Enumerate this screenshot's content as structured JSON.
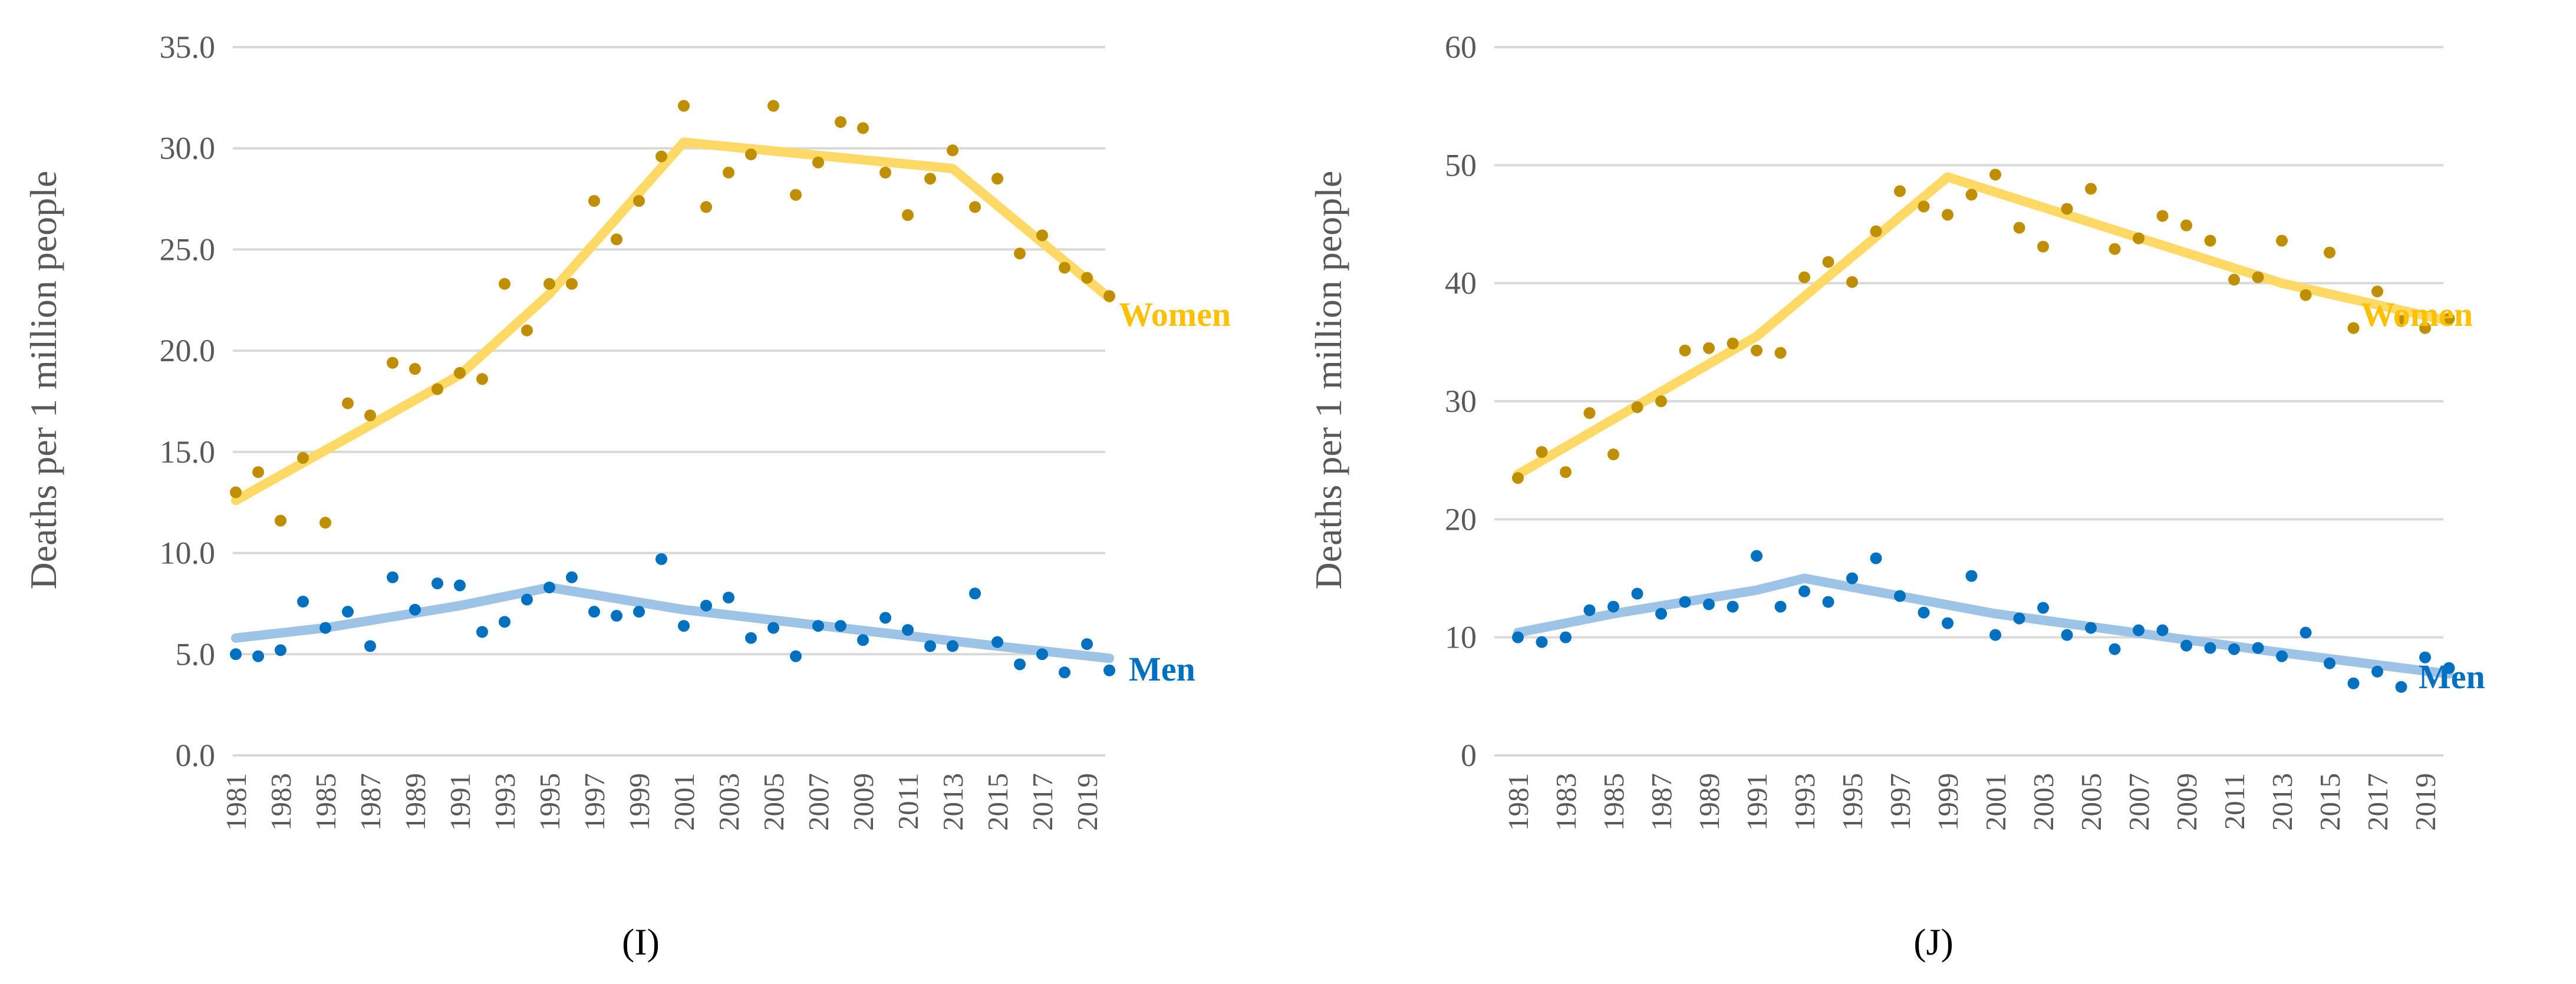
{
  "chart_data": [
    {
      "type": "scatter",
      "panel_label": "(I)",
      "ylabel": "Deaths per 1 million people",
      "ylim": [
        0,
        35
      ],
      "yticks": [
        "0.0",
        "5.0",
        "10.0",
        "15.0",
        "20.0",
        "25.0",
        "30.0",
        "35.0"
      ],
      "ytick_values": [
        0,
        5,
        10,
        15,
        20,
        25,
        30,
        35
      ],
      "x": [
        1981,
        1982,
        1983,
        1984,
        1985,
        1986,
        1987,
        1988,
        1989,
        1990,
        1991,
        1992,
        1993,
        1994,
        1995,
        1996,
        1997,
        1998,
        1999,
        2000,
        2001,
        2002,
        2003,
        2004,
        2005,
        2006,
        2007,
        2008,
        2009,
        2010,
        2011,
        2012,
        2013,
        2014,
        2015,
        2016,
        2017,
        2018,
        2019,
        2020
      ],
      "xticks": [
        "1981",
        "1983",
        "1985",
        "1987",
        "1989",
        "1991",
        "1993",
        "1995",
        "1997",
        "1999",
        "2001",
        "2003",
        "2005",
        "2007",
        "2009",
        "2011",
        "2013",
        "2015",
        "2017",
        "2019"
      ],
      "grid": true,
      "series": [
        {
          "name": "Women",
          "color": "#bf8f00",
          "trend_color": "#ffd966",
          "values": [
            13.0,
            14.0,
            11.6,
            14.7,
            11.5,
            17.4,
            16.8,
            19.4,
            19.1,
            18.1,
            18.9,
            18.6,
            23.3,
            21.0,
            23.3,
            23.3,
            27.4,
            25.5,
            27.4,
            29.6,
            32.1,
            27.1,
            28.8,
            29.7,
            32.1,
            27.7,
            29.3,
            31.3,
            31.0,
            28.8,
            26.7,
            28.5,
            29.9,
            27.1,
            28.5,
            24.8,
            25.7,
            24.1,
            23.6,
            22.7
          ],
          "trend_x": [
            1981,
            1991,
            1995,
            2001,
            2013,
            2020
          ],
          "trend_y": [
            12.6,
            18.8,
            22.8,
            30.3,
            29.0,
            22.6
          ]
        },
        {
          "name": "Men",
          "color": "#0070c0",
          "trend_color": "#9dc3e6",
          "values": [
            5.0,
            4.9,
            5.2,
            7.6,
            6.3,
            7.1,
            5.4,
            8.8,
            7.2,
            8.5,
            8.4,
            6.1,
            6.6,
            7.7,
            8.3,
            8.8,
            7.1,
            6.9,
            7.1,
            9.7,
            6.4,
            7.4,
            7.8,
            5.8,
            6.3,
            4.9,
            6.4,
            6.4,
            5.7,
            6.8,
            6.2,
            5.4,
            5.4,
            8.0,
            5.6,
            4.5,
            5.0,
            4.1,
            5.5,
            4.2
          ],
          "trend_x": [
            1981,
            1985,
            1991,
            1995,
            2001,
            2015,
            2020
          ],
          "trend_y": [
            5.8,
            6.3,
            7.4,
            8.3,
            7.2,
            5.4,
            4.8
          ]
        }
      ]
    },
    {
      "type": "scatter",
      "panel_label": "(J)",
      "ylabel": "Deaths per 1 million people",
      "ylim": [
        0,
        60
      ],
      "yticks": [
        "0",
        "10",
        "20",
        "30",
        "40",
        "50",
        "60"
      ],
      "ytick_values": [
        0,
        10,
        20,
        30,
        40,
        50,
        60
      ],
      "x": [
        1981,
        1982,
        1983,
        1984,
        1985,
        1986,
        1987,
        1988,
        1989,
        1990,
        1991,
        1992,
        1993,
        1994,
        1995,
        1996,
        1997,
        1998,
        1999,
        2000,
        2001,
        2002,
        2003,
        2004,
        2005,
        2006,
        2007,
        2008,
        2009,
        2010,
        2011,
        2012,
        2013,
        2014,
        2015,
        2016,
        2017,
        2018,
        2019,
        2020
      ],
      "xticks": [
        "1981",
        "1983",
        "1985",
        "1987",
        "1989",
        "1991",
        "1993",
        "1995",
        "1997",
        "1999",
        "2001",
        "2003",
        "2005",
        "2007",
        "2009",
        "2011",
        "2013",
        "2015",
        "2017",
        "2019"
      ],
      "grid": true,
      "series": [
        {
          "name": "Women",
          "color": "#bf8f00",
          "trend_color": "#ffd966",
          "values": [
            23.5,
            25.7,
            24.0,
            29.0,
            25.5,
            29.5,
            30.0,
            34.3,
            34.5,
            34.9,
            34.3,
            34.1,
            40.5,
            41.8,
            40.1,
            44.4,
            47.8,
            46.5,
            45.8,
            47.5,
            49.2,
            44.7,
            43.1,
            46.3,
            48.0,
            42.9,
            43.8,
            45.7,
            44.9,
            43.6,
            40.3,
            40.5,
            43.6,
            39.0,
            42.6,
            36.2,
            39.3,
            36.8,
            36.2,
            37.0
          ],
          "trend_x": [
            1981,
            1991,
            1999,
            2013,
            2020
          ],
          "trend_y": [
            23.8,
            35.5,
            49.0,
            40.0,
            36.8
          ]
        },
        {
          "name": "Men",
          "color": "#0070c0",
          "trend_color": "#9dc3e6",
          "values": [
            10.0,
            9.6,
            10.0,
            12.3,
            12.6,
            13.7,
            12.0,
            13.0,
            12.8,
            12.6,
            16.9,
            12.6,
            13.9,
            13.0,
            15.0,
            16.7,
            13.5,
            12.1,
            11.2,
            15.2,
            10.2,
            11.6,
            12.5,
            10.2,
            10.8,
            9.0,
            10.6,
            10.6,
            9.3,
            9.1,
            9.0,
            9.1,
            8.4,
            10.4,
            7.8,
            6.1,
            7.1,
            5.8,
            8.3,
            7.4
          ],
          "trend_x": [
            1981,
            1985,
            1991,
            1993,
            2001,
            2013,
            2020
          ],
          "trend_y": [
            10.4,
            12.0,
            14.0,
            15.0,
            12.0,
            8.7,
            6.9
          ]
        }
      ]
    }
  ]
}
